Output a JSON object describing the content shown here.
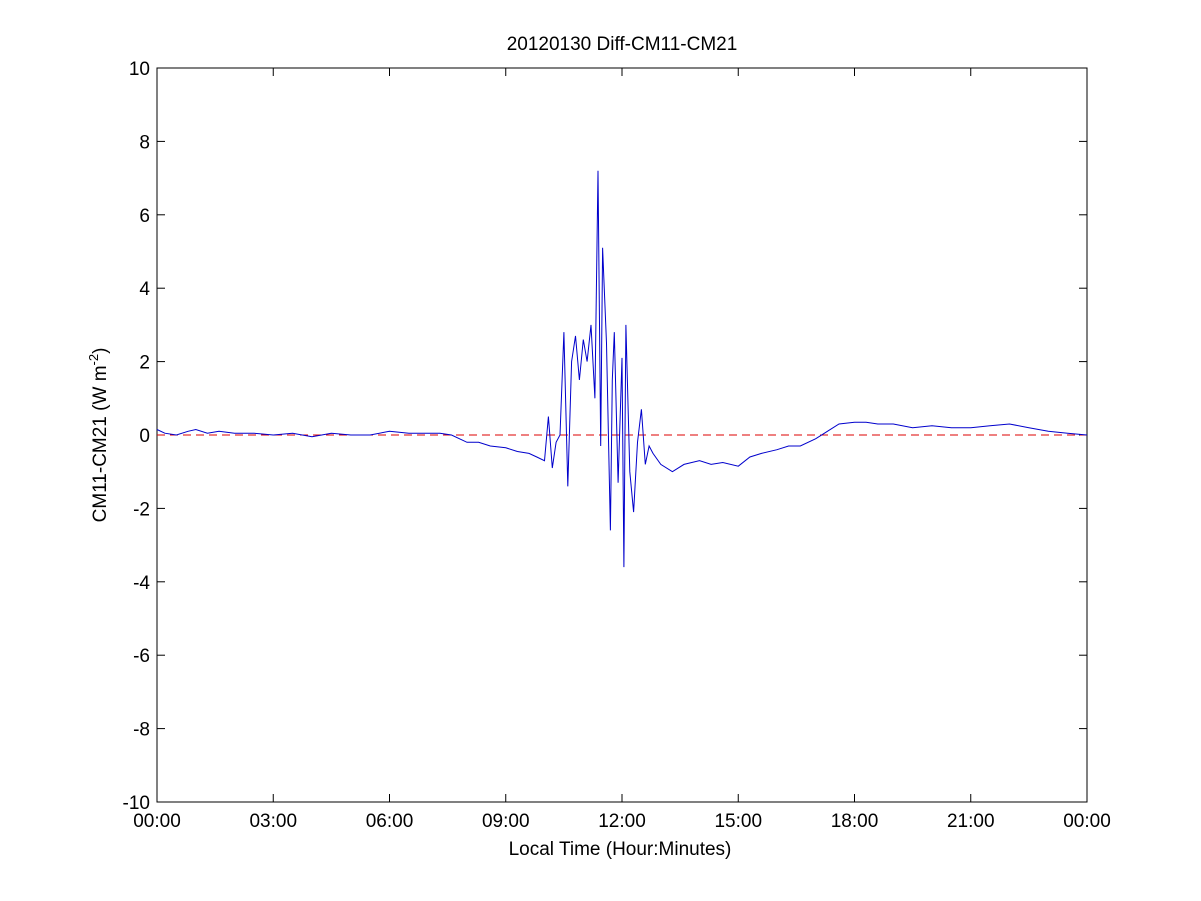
{
  "chart_data": {
    "type": "line",
    "title": "20120130 Diff-CM11-CM21",
    "xlabel": "Local Time (Hour:Minutes)",
    "ylabel": "CM11-CM21 (W m",
    "ylabel_superscript": "-2",
    "ylabel_suffix": ")",
    "xlim": [
      0,
      24
    ],
    "ylim": [
      -10,
      10
    ],
    "x_ticks": [
      0,
      3,
      6,
      9,
      12,
      15,
      18,
      21,
      24
    ],
    "x_tick_labels": [
      "00:00",
      "03:00",
      "06:00",
      "09:00",
      "12:00",
      "15:00",
      "18:00",
      "21:00",
      "00:00"
    ],
    "y_ticks": [
      -10,
      -8,
      -6,
      -4,
      -2,
      0,
      2,
      4,
      6,
      8,
      10
    ],
    "y_tick_labels": [
      "-10",
      "-8",
      "-6",
      "-4",
      "-2",
      "0",
      "2",
      "4",
      "6",
      "8",
      "10"
    ],
    "grid": false,
    "series": [
      {
        "color": "#0000cc",
        "style": "solid",
        "x": [
          0.0,
          0.2,
          0.5,
          0.8,
          1.0,
          1.3,
          1.6,
          2.0,
          2.5,
          3.0,
          3.5,
          4.0,
          4.5,
          5.0,
          5.5,
          6.0,
          6.5,
          7.0,
          7.3,
          7.6,
          8.0,
          8.3,
          8.6,
          9.0,
          9.3,
          9.6,
          9.8,
          10.0,
          10.1,
          10.2,
          10.3,
          10.4,
          10.5,
          10.6,
          10.7,
          10.8,
          10.9,
          11.0,
          11.1,
          11.2,
          11.3,
          11.38,
          11.45,
          11.5,
          11.6,
          11.7,
          11.75,
          11.8,
          11.9,
          12.0,
          12.05,
          12.1,
          12.2,
          12.3,
          12.4,
          12.5,
          12.6,
          12.7,
          12.8,
          13.0,
          13.3,
          13.6,
          14.0,
          14.3,
          14.6,
          15.0,
          15.3,
          15.6,
          16.0,
          16.3,
          16.6,
          17.0,
          17.3,
          17.6,
          18.0,
          18.3,
          18.6,
          19.0,
          19.5,
          20.0,
          20.5,
          21.0,
          21.5,
          22.0,
          22.5,
          23.0,
          23.5,
          24.0
        ],
        "values": [
          0.15,
          0.05,
          0.0,
          0.1,
          0.15,
          0.05,
          0.1,
          0.05,
          0.05,
          0.0,
          0.05,
          -0.05,
          0.05,
          0.0,
          0.0,
          0.1,
          0.05,
          0.05,
          0.05,
          0.0,
          -0.2,
          -0.2,
          -0.3,
          -0.35,
          -0.45,
          -0.5,
          -0.6,
          -0.7,
          0.5,
          -0.9,
          -0.2,
          0.0,
          2.8,
          -1.4,
          2.0,
          2.7,
          1.5,
          2.6,
          2.0,
          3.0,
          1.0,
          7.2,
          -0.3,
          5.1,
          2.5,
          -2.6,
          1.5,
          2.8,
          -1.3,
          2.1,
          -3.6,
          3.0,
          -1.0,
          -2.1,
          -0.2,
          0.7,
          -0.8,
          -0.3,
          -0.5,
          -0.8,
          -1.0,
          -0.8,
          -0.7,
          -0.8,
          -0.75,
          -0.85,
          -0.6,
          -0.5,
          -0.4,
          -0.3,
          -0.3,
          -0.1,
          0.1,
          0.3,
          0.35,
          0.35,
          0.3,
          0.3,
          0.2,
          0.25,
          0.2,
          0.2,
          0.25,
          0.3,
          0.2,
          0.1,
          0.05,
          0.0
        ]
      }
    ],
    "reference_line": {
      "y": 0,
      "color": "#dd0000",
      "style": "dashed"
    }
  }
}
